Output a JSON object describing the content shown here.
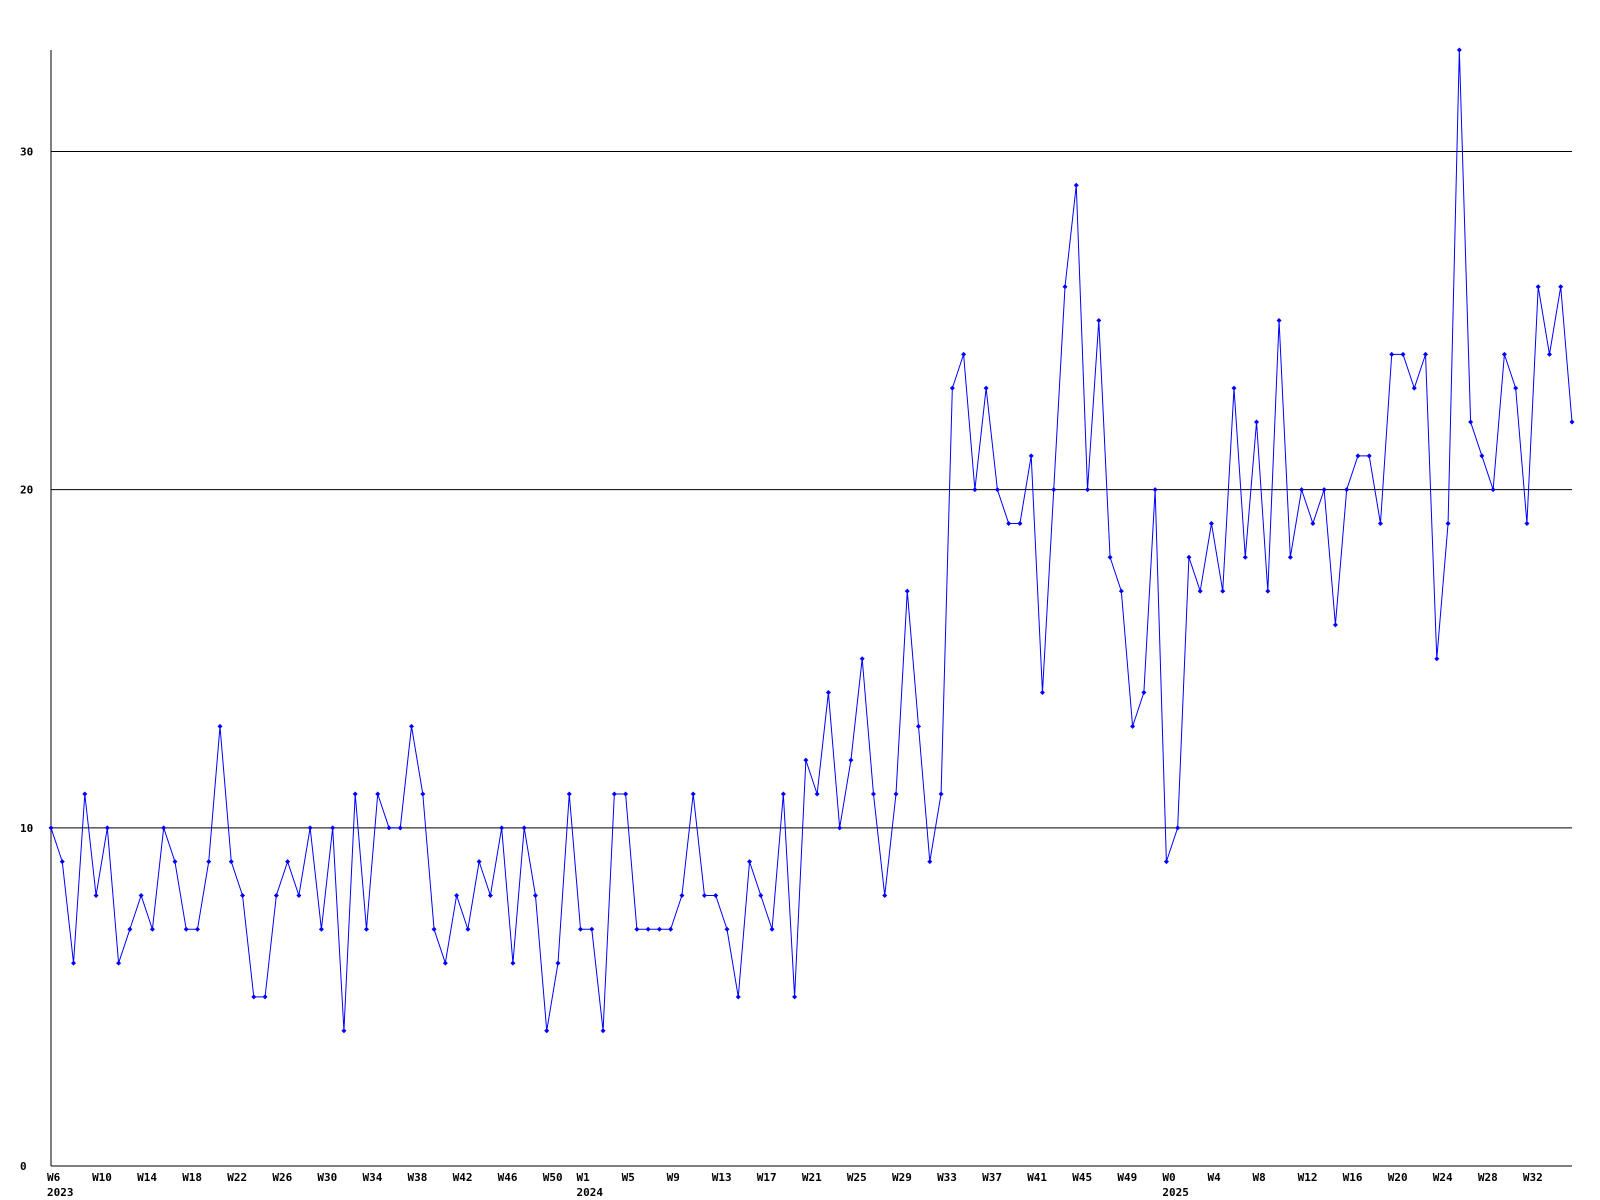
{
  "chart_data": {
    "type": "line",
    "categories": [
      "W6",
      null,
      null,
      null,
      "W10",
      null,
      null,
      null,
      "W14",
      null,
      null,
      null,
      "W18",
      null,
      null,
      null,
      "W22",
      null,
      null,
      null,
      "W26",
      null,
      null,
      null,
      "W30",
      null,
      null,
      null,
      "W34",
      null,
      null,
      null,
      "W38",
      null,
      null,
      null,
      "W42",
      null,
      null,
      null,
      "W46",
      null,
      null,
      null,
      "W50",
      null,
      null,
      "W1",
      null,
      null,
      null,
      "W5",
      null,
      null,
      null,
      "W9",
      null,
      null,
      null,
      "W13",
      null,
      null,
      null,
      "W17",
      null,
      null,
      null,
      "W21",
      null,
      null,
      null,
      "W25",
      null,
      null,
      null,
      "W29",
      null,
      null,
      null,
      "W33",
      null,
      null,
      null,
      "W37",
      null,
      null,
      null,
      "W41",
      null,
      null,
      null,
      "W45",
      null,
      null,
      null,
      "W49",
      null,
      null,
      null,
      "W0",
      null,
      null,
      null,
      "W4",
      null,
      null,
      null,
      "W8",
      null,
      null,
      null,
      "W12",
      null,
      null,
      null,
      "W16",
      null,
      null,
      null,
      "W20",
      null,
      null,
      null,
      "W24",
      null,
      null,
      null,
      "W28",
      null,
      null,
      null,
      "W32",
      null,
      null,
      null,
      null
    ],
    "year_labels": [
      "2023",
      null,
      null,
      null,
      null,
      null,
      null,
      null,
      null,
      null,
      null,
      null,
      null,
      null,
      null,
      null,
      null,
      null,
      null,
      null,
      null,
      null,
      null,
      null,
      null,
      null,
      null,
      null,
      null,
      null,
      null,
      null,
      null,
      null,
      null,
      null,
      null,
      null,
      null,
      null,
      null,
      null,
      null,
      null,
      null,
      null,
      null,
      "2024",
      null,
      null,
      null,
      null,
      null,
      null,
      null,
      null,
      null,
      null,
      null,
      null,
      null,
      null,
      null,
      null,
      null,
      null,
      null,
      null,
      null,
      null,
      null,
      null,
      null,
      null,
      null,
      null,
      null,
      null,
      null,
      null,
      null,
      null,
      null,
      null,
      null,
      null,
      null,
      null,
      null,
      null,
      null,
      null,
      null,
      null,
      null,
      null,
      null,
      null,
      null,
      "2025",
      null,
      null,
      null,
      null,
      null,
      null,
      null,
      null,
      null,
      null,
      null,
      null,
      null,
      null,
      null,
      null,
      null,
      null,
      null,
      null,
      null,
      null,
      null,
      null,
      null,
      null,
      null,
      null,
      null,
      null,
      null,
      null,
      null,
      null,
      null,
      null
    ],
    "values": [
      10,
      9,
      6,
      11,
      8,
      10,
      6,
      7,
      8,
      7,
      10,
      9,
      7,
      7,
      9,
      13,
      9,
      8,
      5,
      5,
      8,
      9,
      8,
      10,
      7,
      10,
      4,
      11,
      7,
      11,
      10,
      10,
      13,
      11,
      7,
      6,
      8,
      7,
      9,
      8,
      10,
      6,
      10,
      8,
      4,
      6,
      11,
      7,
      7,
      4,
      11,
      11,
      7,
      7,
      7,
      7,
      8,
      11,
      8,
      8,
      7,
      5,
      9,
      8,
      7,
      11,
      5,
      12,
      11,
      14,
      10,
      12,
      15,
      11,
      8,
      11,
      17,
      13,
      9,
      11,
      23,
      24,
      20,
      23,
      20,
      19,
      19,
      21,
      14,
      20,
      26,
      29,
      20,
      25,
      18,
      17,
      13,
      14,
      20,
      9,
      10,
      18,
      17,
      19,
      17,
      23,
      18,
      22,
      17,
      25,
      18,
      20,
      19,
      20,
      16,
      20,
      21,
      21,
      19,
      24,
      24,
      23,
      24,
      15,
      19,
      33,
      22,
      21,
      20,
      24,
      23,
      19,
      26,
      24,
      26,
      22
    ],
    "color": "#0000ff",
    "ylim": [
      0,
      33
    ],
    "yticks": [
      0,
      10,
      20,
      30
    ],
    "grid": true
  }
}
